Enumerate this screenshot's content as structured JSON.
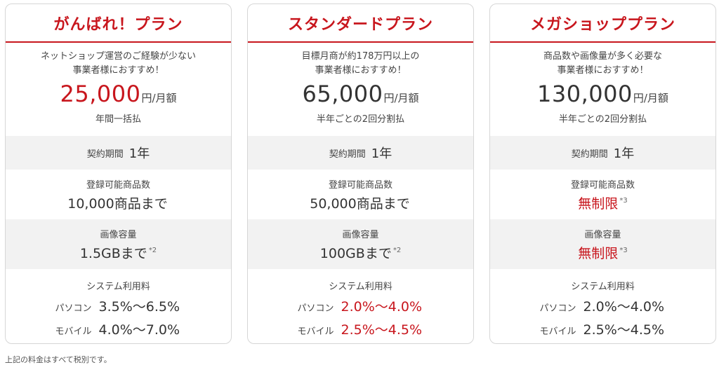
{
  "plans": [
    {
      "name": "がんばれ！プラン",
      "target_line1": "ネットショップ運営のご経験が少ない",
      "target_line2": "事業者様におすすめ！",
      "price": "25,000",
      "price_unit": "円/月額",
      "payment": "年間一括払",
      "contract_label": "契約期間",
      "contract_value": "1年",
      "items_label": "登録可能商品数",
      "items_value": "10,000商品まで",
      "items_note": "",
      "image_label": "画像容量",
      "image_value": "1.5GBまで",
      "image_note": "*2",
      "fee_label": "システム利用料",
      "pc_label": "パソコン",
      "pc_rate": "3.5%〜6.5%",
      "mobile_label": "モバイル",
      "mobile_rate": "4.0%〜7.0%"
    },
    {
      "name": "スタンダードプラン",
      "target_line1": "目標月商が約178万円以上の",
      "target_line2": "事業者様におすすめ！",
      "price": "65,000",
      "price_unit": "円/月額",
      "payment": "半年ごとの2回分割払",
      "contract_label": "契約期間",
      "contract_value": "1年",
      "items_label": "登録可能商品数",
      "items_value": "50,000商品まで",
      "items_note": "",
      "image_label": "画像容量",
      "image_value": "100GBまで",
      "image_note": "*2",
      "fee_label": "システム利用料",
      "pc_label": "パソコン",
      "pc_rate": "2.0%〜4.0%",
      "mobile_label": "モバイル",
      "mobile_rate": "2.5%〜4.5%"
    },
    {
      "name": "メガショッププラン",
      "target_line1": "商品数や画像量が多く必要な",
      "target_line2": "事業者様におすすめ！",
      "price": "130,000",
      "price_unit": "円/月額",
      "payment": "半年ごとの2回分割払",
      "contract_label": "契約期間",
      "contract_value": "1年",
      "items_label": "登録可能商品数",
      "items_value": "無制限",
      "items_note": "*3",
      "image_label": "画像容量",
      "image_value": "無制限",
      "image_note": "*3",
      "fee_label": "システム利用料",
      "pc_label": "パソコン",
      "pc_rate": "2.0%〜4.0%",
      "mobile_label": "モバイル",
      "mobile_rate": "2.5%〜4.5%"
    }
  ],
  "footnote": "上記の料金はすべて税別です。",
  "colors": {
    "accent": "#c8161d",
    "row_grey": "#f2f2f2",
    "border": "#d6d6d6"
  }
}
